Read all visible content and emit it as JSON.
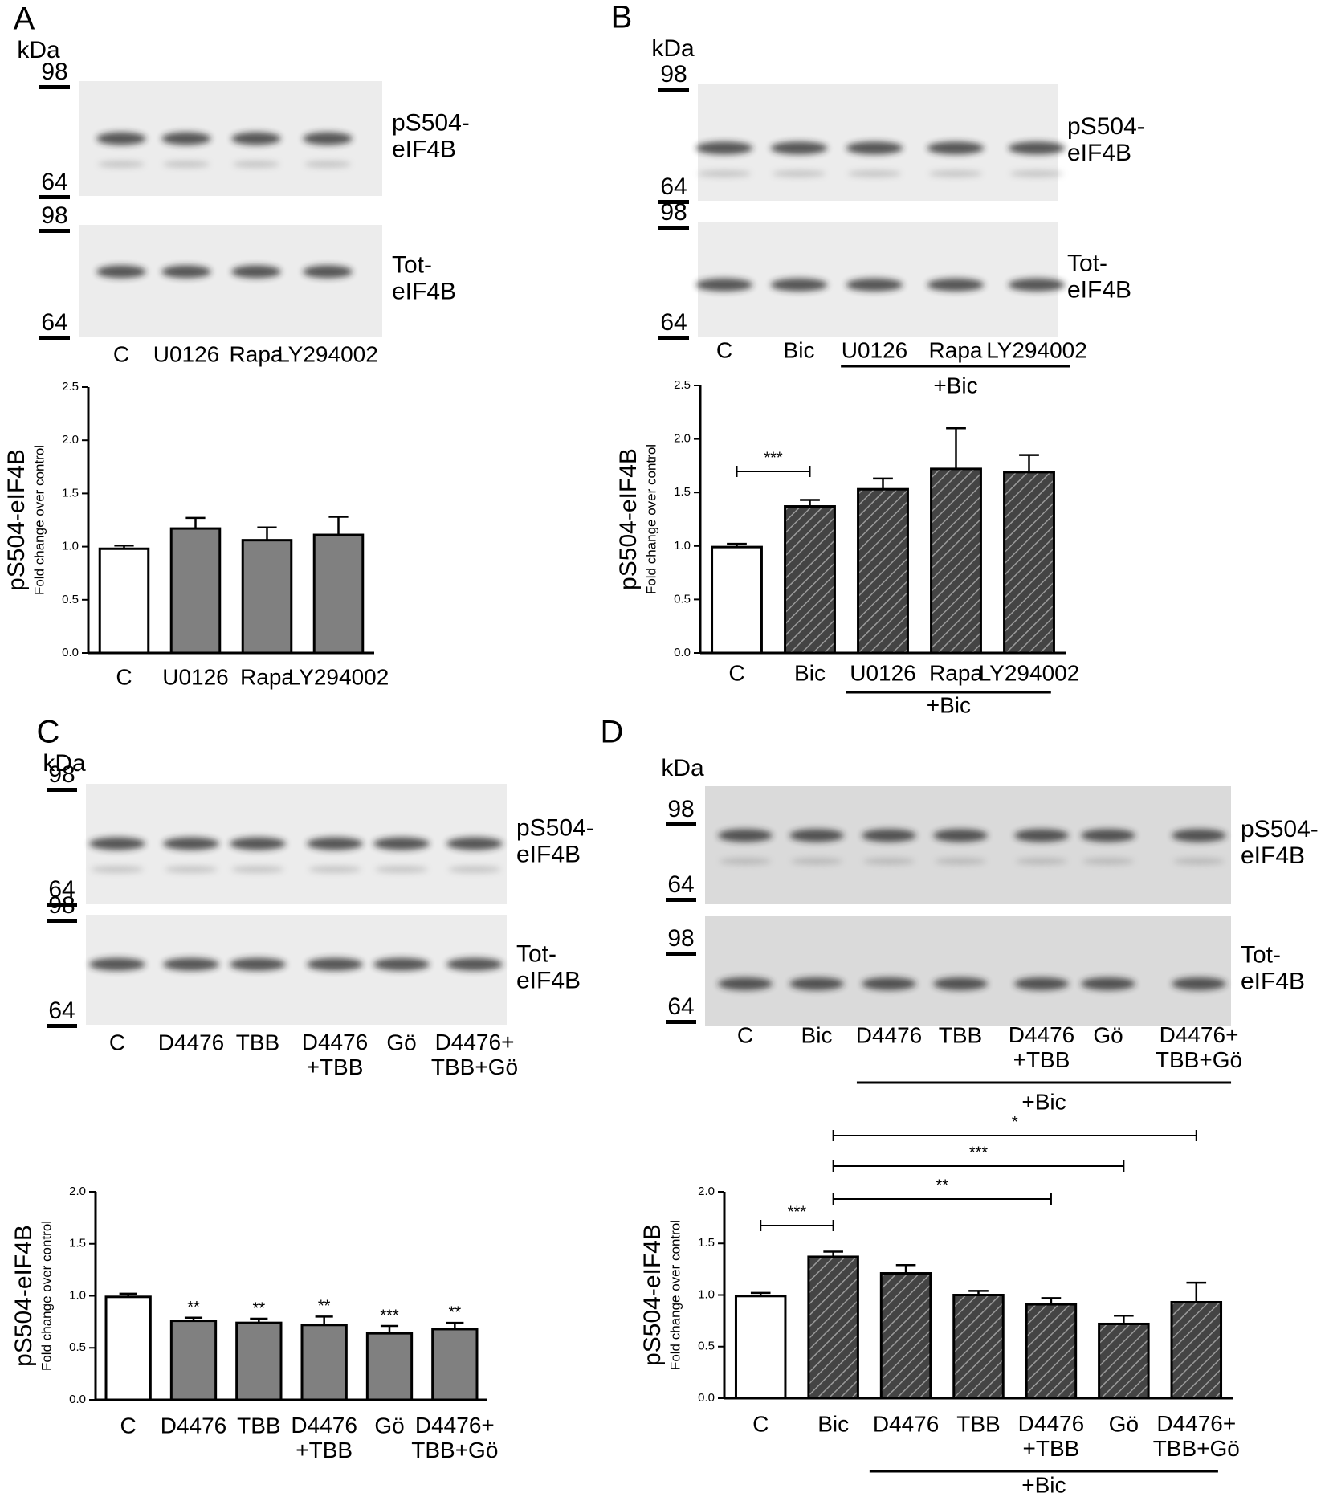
{
  "panels": [
    {
      "letter": "A",
      "kda": "kDa",
      "blots": [
        {
          "markers": [
            "98",
            "64"
          ],
          "protein": "pS504-\neIF4B"
        },
        {
          "markers": [
            "98",
            "64"
          ],
          "protein": "Tot-\neIF4B"
        }
      ],
      "lanes": [
        "C",
        "U0126",
        "Rapa",
        "LY294002"
      ]
    },
    {
      "letter": "B",
      "kda": "kDa",
      "blots": [
        {
          "markers": [
            "98",
            "64"
          ],
          "protein": "pS504-\neIF4B"
        },
        {
          "markers": [
            "98",
            "64"
          ],
          "protein": "Tot-\neIF4B"
        }
      ],
      "lanes": [
        "C",
        "Bic",
        "U0126",
        "Rapa",
        "LY294002"
      ],
      "group": {
        "label": "+Bic",
        "from": 2,
        "to": 4
      }
    },
    {
      "letter": "C",
      "kda": "kDa",
      "blots": [
        {
          "markers": [
            "98",
            "64"
          ],
          "protein": "pS504-\neIF4B"
        },
        {
          "markers": [
            "98",
            "64"
          ],
          "protein": "Tot-\neIF4B"
        }
      ],
      "lanes": [
        "C",
        "D4476",
        "TBB",
        "D4476\n+TBB",
        "Gö",
        "D4476+\nTBB+Gö"
      ]
    },
    {
      "letter": "D",
      "kda": "kDa",
      "blots": [
        {
          "markers": [
            "98",
            "64"
          ],
          "protein": "pS504-\neIF4B"
        },
        {
          "markers": [
            "98",
            "64"
          ],
          "protein": "Tot-\neIF4B"
        }
      ],
      "lanes": [
        "C",
        "Bic",
        "D4476",
        "TBB",
        "D4476\n+TBB",
        "Gö",
        "D4476+\nTBB+Gö"
      ],
      "group": {
        "label": "+Bic",
        "from": 2,
        "to": 6
      }
    }
  ],
  "chart_data": [
    {
      "type": "bar",
      "y_title": "pS504-eIF4B",
      "y_subtitle": "Fold change over control",
      "categories": [
        "C",
        "U0126",
        "Rapa",
        "LY294002"
      ],
      "values": [
        0.98,
        1.17,
        1.06,
        1.11
      ],
      "errors": [
        0.03,
        0.1,
        0.12,
        0.17
      ],
      "colors": [
        "#ffffff",
        "#808080",
        "#808080",
        "#808080"
      ],
      "hatched": [
        false,
        false,
        false,
        false
      ],
      "ylim": [
        0,
        2.5
      ],
      "yticks": [
        {
          "value": 0,
          "label": "0.0"
        },
        0.5,
        {
          "value": 1,
          "label": "1.0"
        },
        1.5,
        {
          "value": 2,
          "label": "2.0"
        },
        2.5
      ]
    },
    {
      "type": "bar",
      "y_title": "pS504-eIF4B",
      "y_subtitle": "Fold change over control",
      "categories": [
        "C",
        "Bic",
        "U0126",
        "Rapa",
        "LY294002"
      ],
      "values": [
        0.99,
        1.37,
        1.53,
        1.72,
        1.69
      ],
      "errors": [
        0.03,
        0.06,
        0.1,
        0.38,
        0.16
      ],
      "colors": [
        "#ffffff",
        "#4a4a4a",
        "#4a4a4a",
        "#4a4a4a",
        "#4a4a4a"
      ],
      "hatched": [
        false,
        true,
        true,
        true,
        true
      ],
      "ylim": [
        0,
        2.5
      ],
      "yticks": [
        {
          "value": 0,
          "label": "0.0"
        },
        0.5,
        {
          "value": 1,
          "label": "1.0"
        },
        1.5,
        {
          "value": 2,
          "label": "2.0"
        },
        2.5
      ],
      "comparisons": [
        {
          "from": 0,
          "to": 1,
          "label": "***"
        }
      ],
      "group": {
        "label": "+Bic",
        "from": 2,
        "to": 4
      }
    },
    {
      "type": "bar",
      "y_title": "pS504-eIF4B",
      "y_subtitle": "Fold change over control",
      "categories": [
        "C",
        "D4476",
        "TBB",
        "D4476\n+TBB",
        "Gö",
        "D4476+\nTBB+Gö"
      ],
      "values": [
        0.99,
        0.76,
        0.74,
        0.72,
        0.64,
        0.68
      ],
      "errors": [
        0.03,
        0.03,
        0.04,
        0.08,
        0.07,
        0.06
      ],
      "colors": [
        "#ffffff",
        "#808080",
        "#808080",
        "#808080",
        "#808080",
        "#808080"
      ],
      "hatched": [
        false,
        false,
        false,
        false,
        false,
        false
      ],
      "annotations": [
        null,
        "**",
        "**",
        "**",
        "***",
        "**"
      ],
      "ylim": [
        0,
        2
      ],
      "yticks": [
        {
          "value": 0,
          "label": "0.0"
        },
        0.5,
        {
          "value": 1,
          "label": "1.0"
        },
        1.5,
        {
          "value": 2,
          "label": "2.0"
        }
      ]
    },
    {
      "type": "bar",
      "y_title": "pS504-eIF4B",
      "y_subtitle": "Fold change over control",
      "categories": [
        "C",
        "Bic",
        "D4476",
        "TBB",
        "D4476\n+TBB",
        "Gö",
        "D4476+\nTBB+Gö"
      ],
      "values": [
        0.99,
        1.37,
        1.21,
        1.0,
        0.91,
        0.72,
        0.93
      ],
      "errors": [
        0.03,
        0.05,
        0.08,
        0.04,
        0.06,
        0.08,
        0.19
      ],
      "colors": [
        "#ffffff",
        "#4a4a4a",
        "#4a4a4a",
        "#4a4a4a",
        "#4a4a4a",
        "#4a4a4a",
        "#4a4a4a"
      ],
      "hatched": [
        false,
        true,
        true,
        true,
        true,
        true,
        true
      ],
      "ylim": [
        0,
        2
      ],
      "yticks": [
        {
          "value": 0,
          "label": "0.0"
        },
        0.5,
        {
          "value": 1,
          "label": "1.0"
        },
        1.5,
        {
          "value": 2,
          "label": "2.0"
        }
      ],
      "comparisons": [
        {
          "from": 0,
          "to": 1,
          "label": "***"
        },
        {
          "from": 1,
          "to": 4,
          "label": "**"
        },
        {
          "from": 1,
          "to": 5,
          "label": "***"
        },
        {
          "from": 1,
          "to": 6,
          "label": "*"
        }
      ],
      "group": {
        "label": "+Bic",
        "from": 2,
        "to": 6
      }
    }
  ]
}
